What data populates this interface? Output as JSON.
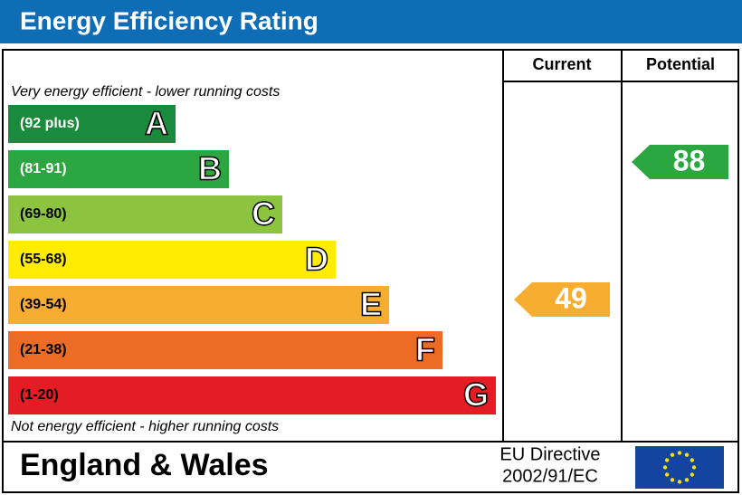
{
  "header": {
    "title": "Energy Efficiency Rating"
  },
  "columns": {
    "current": "Current",
    "potential": "Potential"
  },
  "top_note": "Very energy efficient - lower running costs",
  "bottom_note": "Not energy efficient - higher running costs",
  "bands": [
    {
      "range": "(92 plus)",
      "letter": "A"
    },
    {
      "range": "(81-91)",
      "letter": "B"
    },
    {
      "range": "(69-80)",
      "letter": "C"
    },
    {
      "range": "(55-68)",
      "letter": "D"
    },
    {
      "range": "(39-54)",
      "letter": "E"
    },
    {
      "range": "(21-38)",
      "letter": "F"
    },
    {
      "range": "(1-20)",
      "letter": "G"
    }
  ],
  "current": {
    "rating": 49
  },
  "potential": {
    "rating": 88
  },
  "footer": {
    "region": "England & Wales",
    "directive": [
      "EU Directive",
      "2002/91/EC"
    ]
  }
}
